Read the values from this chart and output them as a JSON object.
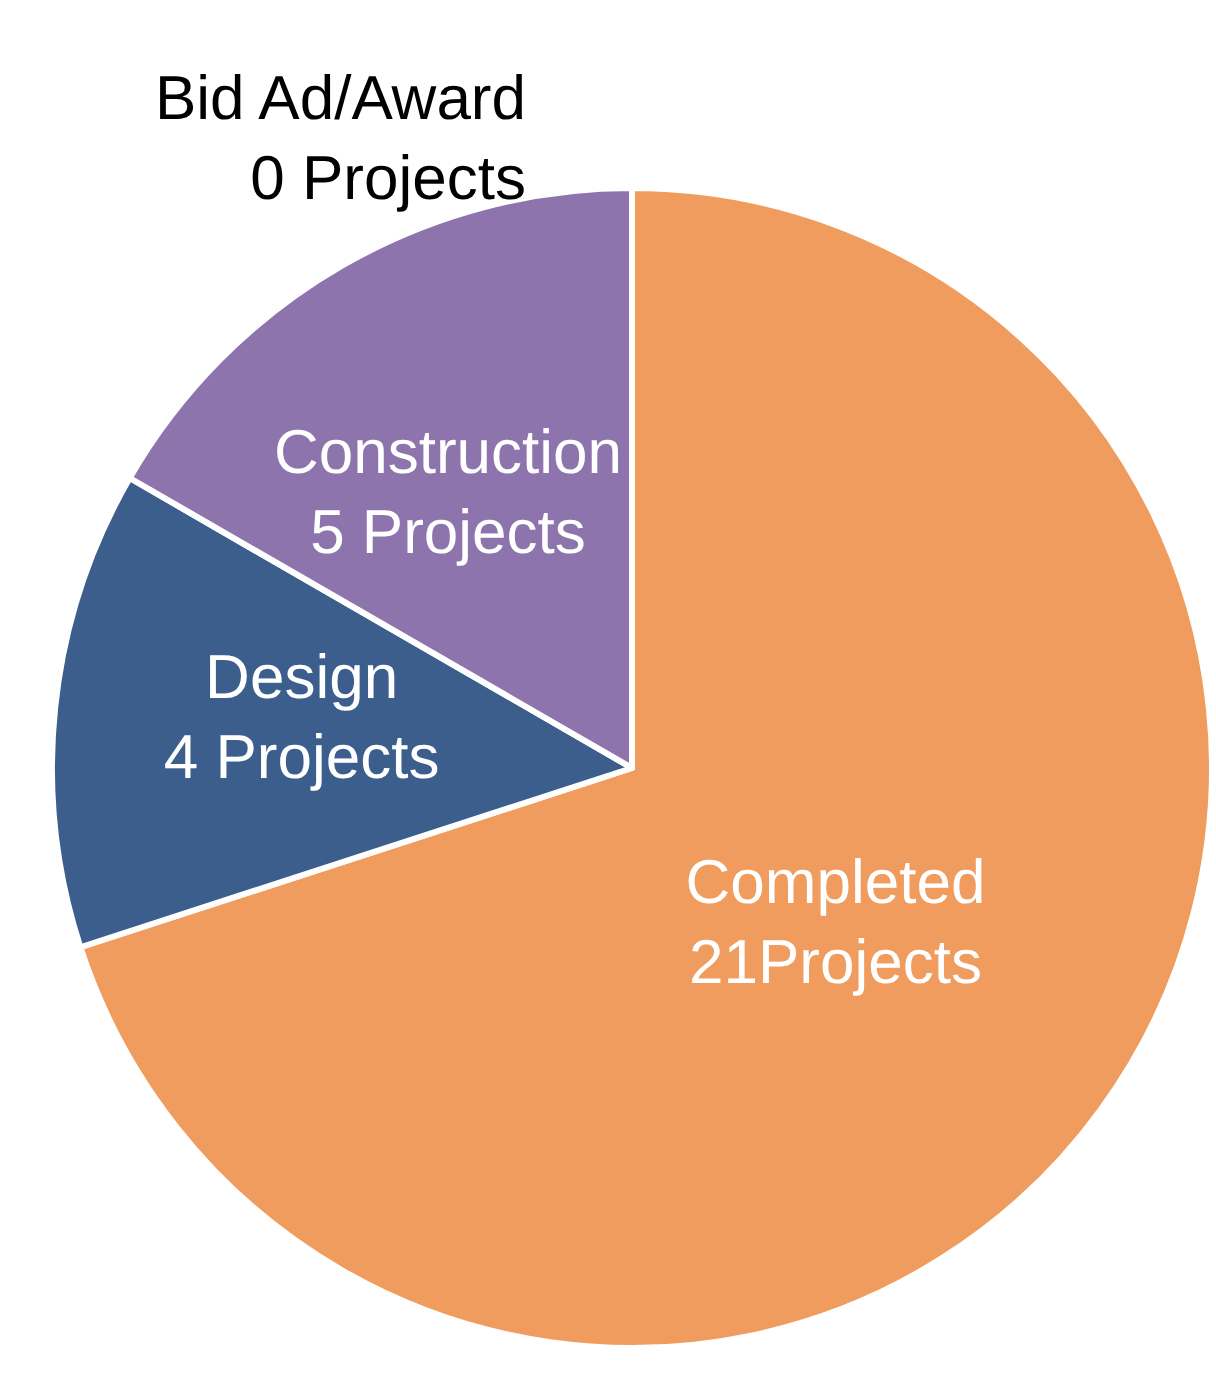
{
  "chart_data": {
    "type": "pie",
    "categories": [
      "Completed",
      "Design",
      "Construction",
      "Bid Ad/Award"
    ],
    "values": [
      21,
      4,
      5,
      0
    ],
    "value_labels": [
      "21Projects",
      "4 Projects",
      "5 Projects",
      "0 Projects"
    ],
    "colors": [
      "#f09c5f",
      "#3b5e8c",
      "#8e74ad",
      null
    ],
    "legend": false
  }
}
